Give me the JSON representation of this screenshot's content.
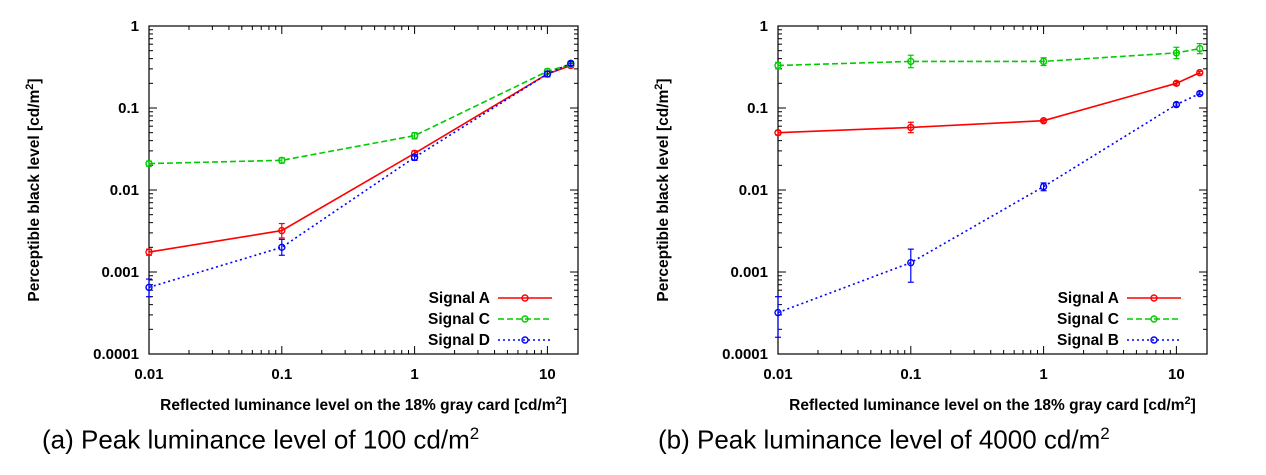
{
  "captions": {
    "a": {
      "text": "(a) Peak luminance level of 100 cd/m",
      "sup": "2"
    },
    "b": {
      "text": "(b) Peak luminance level of 4000 cd/m",
      "sup": "2"
    }
  },
  "chart_data": [
    {
      "id": "a",
      "type": "line",
      "xscale": "log",
      "yscale": "log",
      "xlim": [
        0.01,
        17
      ],
      "ylim": [
        0.0001,
        1
      ],
      "xticks": [
        {
          "v": 0.01,
          "label": "0.01"
        },
        {
          "v": 0.1,
          "label": "0.1"
        },
        {
          "v": 1,
          "label": "1"
        },
        {
          "v": 10,
          "label": "10"
        }
      ],
      "yticks": [
        {
          "v": 0.0001,
          "label": "0.0001"
        },
        {
          "v": 0.001,
          "label": "0.001"
        },
        {
          "v": 0.01,
          "label": "0.01"
        },
        {
          "v": 0.1,
          "label": "0.1"
        },
        {
          "v": 1,
          "label": "1"
        }
      ],
      "xlabel": "Reflected luminance level on the 18% gray card [cd/m",
      "xlabel_sup": "2",
      "xlabel_end": "]",
      "ylabel": "Perceptible black level [cd/m",
      "ylabel_sup": "2",
      "ylabel_end": "]",
      "grid": false,
      "legend": "bottom-right",
      "series": [
        {
          "name": "Signal A",
          "color": "#ff0000",
          "dash": "solid",
          "x": [
            0.01,
            0.1,
            1,
            10,
            15
          ],
          "y": [
            0.00175,
            0.0032,
            0.028,
            0.26,
            0.33
          ],
          "err": [
            [
              0.0016,
              0.0019
            ],
            [
              0.0026,
              0.0039
            ],
            [
              0.026,
              0.03
            ],
            [
              0.24,
              0.28
            ],
            [
              0.31,
              0.35
            ]
          ]
        },
        {
          "name": "Signal C",
          "color": "#00cc00",
          "dash": "dashed",
          "x": [
            0.01,
            0.1,
            1,
            10,
            15
          ],
          "y": [
            0.021,
            0.023,
            0.046,
            0.28,
            0.34
          ],
          "err": [
            [
              0.0195,
              0.0225
            ],
            [
              0.0213,
              0.0247
            ],
            [
              0.042,
              0.05
            ],
            [
              0.26,
              0.3
            ],
            [
              0.32,
              0.36
            ]
          ]
        },
        {
          "name": "Signal D",
          "color": "#0000ff",
          "dash": "dotted",
          "x": [
            0.01,
            0.1,
            1,
            10,
            15
          ],
          "y": [
            0.00065,
            0.002,
            0.025,
            0.26,
            0.35
          ],
          "err": [
            [
              0.0005,
              0.00082
            ],
            [
              0.0016,
              0.0025
            ],
            [
              0.023,
              0.027
            ],
            [
              0.24,
              0.28
            ],
            [
              0.33,
              0.37
            ]
          ]
        }
      ]
    },
    {
      "id": "b",
      "type": "line",
      "xscale": "log",
      "yscale": "log",
      "xlim": [
        0.01,
        17
      ],
      "ylim": [
        0.0001,
        1
      ],
      "xticks": [
        {
          "v": 0.01,
          "label": "0.01"
        },
        {
          "v": 0.1,
          "label": "0.1"
        },
        {
          "v": 1,
          "label": "1"
        },
        {
          "v": 10,
          "label": "10"
        }
      ],
      "yticks": [
        {
          "v": 0.0001,
          "label": "0.0001"
        },
        {
          "v": 0.001,
          "label": "0.001"
        },
        {
          "v": 0.01,
          "label": "0.01"
        },
        {
          "v": 0.1,
          "label": "0.1"
        },
        {
          "v": 1,
          "label": "1"
        }
      ],
      "xlabel": "Reflected luminance level on the 18% gray card [cd/m",
      "xlabel_sup": "2",
      "xlabel_end": "]",
      "ylabel": "Perceptible black level [cd/m",
      "ylabel_sup": "2",
      "ylabel_end": "]",
      "grid": false,
      "legend": "bottom-right",
      "series": [
        {
          "name": "Signal A",
          "color": "#ff0000",
          "dash": "solid",
          "x": [
            0.01,
            0.1,
            1,
            10,
            15
          ],
          "y": [
            0.05,
            0.058,
            0.07,
            0.2,
            0.27
          ],
          "err": [
            [
              0.047,
              0.053
            ],
            [
              0.05,
              0.067
            ],
            [
              0.067,
              0.073
            ],
            [
              0.19,
              0.21
            ],
            [
              0.26,
              0.28
            ]
          ]
        },
        {
          "name": "Signal C",
          "color": "#00cc00",
          "dash": "dashed",
          "x": [
            0.01,
            0.1,
            1,
            10,
            15
          ],
          "y": [
            0.33,
            0.37,
            0.37,
            0.47,
            0.53
          ],
          "err": [
            [
              0.3,
              0.36
            ],
            [
              0.31,
              0.44
            ],
            [
              0.33,
              0.41
            ],
            [
              0.4,
              0.55
            ],
            [
              0.46,
              0.61
            ]
          ]
        },
        {
          "name": "Signal B",
          "color": "#0000ff",
          "dash": "dotted",
          "x": [
            0.01,
            0.1,
            1,
            10,
            15
          ],
          "y": [
            0.00032,
            0.0013,
            0.011,
            0.11,
            0.15
          ],
          "err": [
            [
              0.00016,
              0.0005
            ],
            [
              0.00075,
              0.0019
            ],
            [
              0.0098,
              0.0122
            ],
            [
              0.105,
              0.116
            ],
            [
              0.145,
              0.157
            ]
          ]
        }
      ]
    }
  ]
}
